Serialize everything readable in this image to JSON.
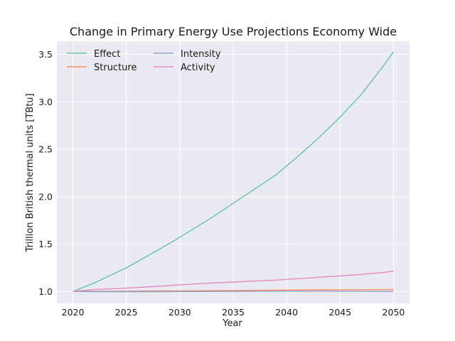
{
  "chart_data": {
    "type": "line",
    "title": "Change in Primary Energy Use Projections Economy Wide",
    "xlabel": "Year",
    "ylabel": "Trillion British thermal units [TBtu]",
    "xlim": [
      2018.5,
      2051.5
    ],
    "ylim": [
      0.875,
      3.64
    ],
    "xticks": [
      2020,
      2025,
      2030,
      2035,
      2040,
      2045,
      2050
    ],
    "yticks": [
      1.0,
      1.5,
      2.0,
      2.5,
      3.0,
      3.5
    ],
    "xtick_labels": [
      "2020",
      "2025",
      "2030",
      "2035",
      "2040",
      "2045",
      "2050"
    ],
    "ytick_labels": [
      "1.0",
      "1.5",
      "2.0",
      "2.5",
      "3.0",
      "3.5"
    ],
    "grid": true,
    "legend": {
      "placement": "top-left",
      "columns": 2
    },
    "x": [
      2020,
      2022,
      2025,
      2028,
      2030,
      2033,
      2035,
      2037,
      2039,
      2041,
      2043,
      2045,
      2047,
      2049,
      2050
    ],
    "series": [
      {
        "name": "Effect",
        "color": "#66c2a5",
        "values": [
          1.0,
          1.09,
          1.25,
          1.44,
          1.57,
          1.78,
          1.93,
          2.08,
          2.23,
          2.42,
          2.62,
          2.84,
          3.08,
          3.37,
          3.53
        ]
      },
      {
        "name": "Structure",
        "color": "#fc8d62",
        "values": [
          1.0,
          1.002,
          1.004,
          1.006,
          1.007,
          1.009,
          1.01,
          1.012,
          1.014,
          1.016,
          1.017,
          1.018,
          1.019,
          1.02,
          1.021
        ]
      },
      {
        "name": "Intensity",
        "color": "#8da0cb",
        "values": [
          1.0,
          0.999,
          0.999,
          0.999,
          1.0,
          1.0,
          1.001,
          1.002,
          1.003,
          1.003,
          1.003,
          1.002,
          1.002,
          1.001,
          1.0
        ]
      },
      {
        "name": "Activity",
        "color": "#e78ac3",
        "values": [
          1.0,
          1.02,
          1.035,
          1.055,
          1.07,
          1.09,
          1.1,
          1.11,
          1.12,
          1.135,
          1.15,
          1.165,
          1.18,
          1.2,
          1.215
        ]
      }
    ]
  },
  "colors": {
    "plot_background": "#eaeaf2",
    "grid": "#ffffff"
  }
}
